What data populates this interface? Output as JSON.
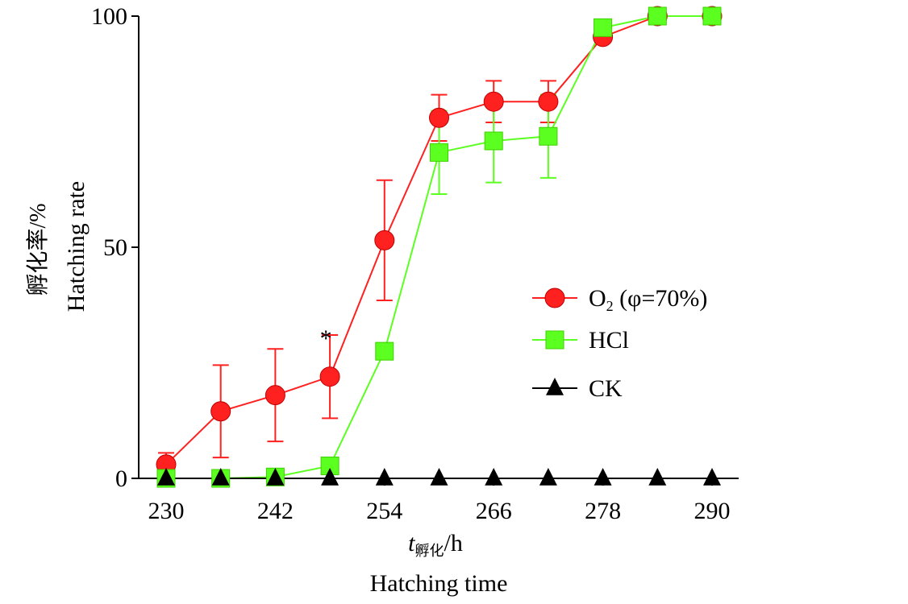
{
  "chart_data": {
    "type": "line",
    "x": [
      230,
      236,
      242,
      248,
      254,
      260,
      266,
      272,
      278,
      284,
      290
    ],
    "xlim": [
      230,
      290
    ],
    "ylim": [
      0,
      100
    ],
    "xticks": [
      230,
      242,
      254,
      266,
      278,
      290
    ],
    "yticks": [
      0,
      50,
      100
    ],
    "xlabel_cn": "t",
    "xlabel_sub": "孵化",
    "xlabel_unit": "/h",
    "xlabel_en": "Hatching time",
    "ylabel_cn": "孵化率/%",
    "ylabel_en": "Hatching rate",
    "annotation": "*",
    "annotation_x": 248,
    "annotation_y": 31,
    "series": [
      {
        "name": "O₂ (φ=70%)",
        "legend_main": "O",
        "legend_sub": "2",
        "legend_rest": " (φ=70%)",
        "color": "#ff2020",
        "marker": "circle",
        "values": [
          3,
          14.5,
          18,
          22,
          51.5,
          78,
          81.5,
          81.5,
          95.5,
          100,
          100
        ],
        "errors": [
          2.5,
          10,
          10,
          9,
          13,
          5,
          4.5,
          4.5,
          0,
          0,
          0
        ]
      },
      {
        "name": "HCl",
        "legend_main": "HCl",
        "color": "#5bff20",
        "marker": "square",
        "values": [
          0,
          0,
          0.3,
          2.7,
          27.5,
          70.5,
          73,
          74,
          97.5,
          100,
          100
        ],
        "errors": [
          0,
          0,
          0,
          0,
          0,
          9,
          9,
          9,
          0,
          0,
          0
        ]
      },
      {
        "name": "CK",
        "legend_main": "CK",
        "color": "#000000",
        "marker": "triangle",
        "values": [
          0,
          0,
          0,
          0,
          0,
          0,
          0,
          0,
          0,
          0,
          0
        ],
        "errors": [
          0,
          0,
          0,
          0,
          0,
          0,
          0,
          0,
          0,
          0,
          0
        ]
      }
    ],
    "legend_position": "right"
  }
}
